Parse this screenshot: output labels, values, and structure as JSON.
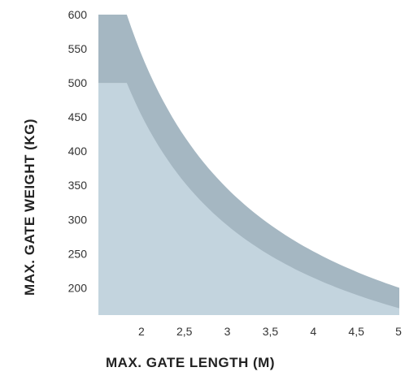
{
  "chart_data": {
    "type": "area",
    "xlabel": "MAX. GATE LENGTH (M)",
    "ylabel": "MAX. GATE WEIGHT (KG)",
    "x_ticks": [
      "2",
      "2,5",
      "3",
      "3,5",
      "4",
      "4,5",
      "5"
    ],
    "x_tick_values": [
      2,
      2.5,
      3,
      3.5,
      4,
      4.5,
      5
    ],
    "y_ticks": [
      "600",
      "550",
      "500",
      "450",
      "400",
      "350",
      "300",
      "250",
      "200"
    ],
    "y_tick_values": [
      600,
      550,
      500,
      450,
      400,
      350,
      300,
      250,
      200
    ],
    "xlim": [
      1.5,
      5
    ],
    "ylim": [
      160,
      600
    ],
    "grid": false,
    "series": [
      {
        "x": [
          1.5,
          1.83,
          2,
          2.5,
          3,
          3.5,
          4,
          4.5,
          5
        ],
        "values": [
          600,
          600,
          500,
          400,
          333,
          286,
          250,
          222,
          200
        ],
        "color": "#a5b7c2"
      },
      {
        "x": [
          1.5,
          1.83,
          2,
          2.5,
          3,
          3.5,
          4,
          4.5,
          5
        ],
        "values": [
          500,
          500,
          420,
          340,
          283,
          243,
          213,
          189,
          170
        ],
        "color": "#c3d4de"
      }
    ]
  }
}
